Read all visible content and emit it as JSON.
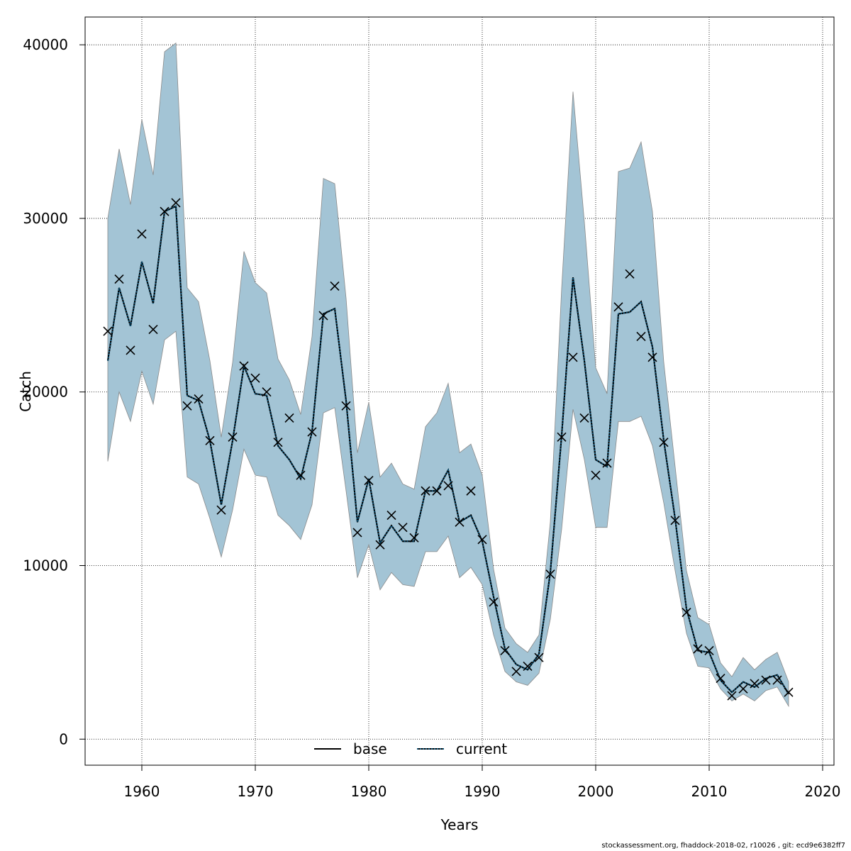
{
  "chart_data": {
    "type": "line",
    "xlabel": "Years",
    "ylabel": "Catch",
    "xlim": [
      1955,
      2021
    ],
    "ylim": [
      -1500,
      41600
    ],
    "x_ticks": [
      1960,
      1970,
      1980,
      1990,
      2000,
      2010,
      2020
    ],
    "y_ticks": [
      0,
      10000,
      20000,
      30000,
      40000
    ],
    "grid": true,
    "legend_position": "bottom-center",
    "colors": {
      "band": "#a3c4d5",
      "band_edge": "#8a8a8a",
      "base": "#000000",
      "current": "#0a4f73",
      "points": "#000000"
    },
    "footnote": "stockassessment.org, fhaddock-2018-02, r10026 , git: ecd9e6382ff7",
    "x": [
      1957,
      1958,
      1959,
      1960,
      1961,
      1962,
      1963,
      1964,
      1965,
      1966,
      1967,
      1968,
      1969,
      1970,
      1971,
      1972,
      1973,
      1974,
      1975,
      1976,
      1977,
      1978,
      1979,
      1980,
      1981,
      1982,
      1983,
      1984,
      1985,
      1986,
      1987,
      1988,
      1989,
      1990,
      1991,
      1992,
      1993,
      1994,
      1995,
      1996,
      1997,
      1998,
      1999,
      2000,
      2001,
      2002,
      2003,
      2004,
      2005,
      2006,
      2007,
      2008,
      2009,
      2010,
      2011,
      2012,
      2013,
      2014,
      2015,
      2016,
      2017
    ],
    "series": [
      {
        "name": "base",
        "style": "solid",
        "values": [
          21800,
          26000,
          23800,
          27500,
          25100,
          30400,
          30700,
          19800,
          19500,
          17200,
          13500,
          17200,
          21500,
          19900,
          19800,
          16900,
          16100,
          15000,
          17700,
          24500,
          24800,
          19500,
          12500,
          15000,
          11300,
          12300,
          11400,
          11400,
          14300,
          14300,
          15500,
          12500,
          12900,
          11400,
          8200,
          5200,
          4300,
          4000,
          4900,
          9600,
          17500,
          26600,
          21800,
          16100,
          15700,
          24500,
          24600,
          25200,
          22600,
          17200,
          12700,
          7500,
          5100,
          5000,
          3400,
          2700,
          3300,
          3000,
          3500,
          3700,
          2600
        ]
      },
      {
        "name": "current",
        "style": "dotted",
        "values": [
          21800,
          26000,
          23800,
          27500,
          25100,
          30400,
          30700,
          19800,
          19500,
          17200,
          13500,
          17200,
          21500,
          19900,
          19800,
          16900,
          16100,
          15000,
          17700,
          24500,
          24800,
          19500,
          12500,
          15000,
          11300,
          12300,
          11400,
          11400,
          14300,
          14300,
          15500,
          12500,
          12900,
          11400,
          8200,
          5200,
          4300,
          4000,
          4900,
          9600,
          17500,
          26600,
          21800,
          16100,
          15700,
          24500,
          24600,
          25200,
          22600,
          17200,
          12700,
          7500,
          5100,
          5000,
          3400,
          2700,
          3300,
          3000,
          3500,
          3700,
          2600
        ]
      }
    ],
    "observed": [
      23500,
      26500,
      22400,
      29100,
      23600,
      30400,
      30900,
      19200,
      19600,
      17200,
      13200,
      17400,
      21500,
      20800,
      20000,
      17100,
      18500,
      15200,
      17700,
      24400,
      26100,
      19200,
      11900,
      14900,
      11200,
      12900,
      12200,
      11600,
      14300,
      14300,
      14600,
      12500,
      14300,
      11500,
      7900,
      5100,
      3900,
      4200,
      4700,
      9500,
      17400,
      22000,
      18500,
      15200,
      15900,
      24900,
      26800,
      23200,
      22000,
      17100,
      12600,
      7300,
      5200,
      5100,
      3500,
      2500,
      2900,
      3200,
      3400,
      3400,
      2700
    ],
    "band_upper": [
      30000,
      34000,
      30800,
      35700,
      32500,
      39600,
      40100,
      26000,
      25200,
      21800,
      17400,
      21700,
      28100,
      26300,
      25700,
      21900,
      20700,
      18700,
      23200,
      32300,
      32000,
      25400,
      16500,
      19400,
      15100,
      15900,
      14700,
      14400,
      18000,
      18800,
      20500,
      16500,
      17000,
      15200,
      9800,
      6400,
      5500,
      5000,
      6000,
      12500,
      26000,
      37300,
      29800,
      21400,
      19900,
      32700,
      32900,
      34400,
      30400,
      21700,
      15700,
      9700,
      7000,
      6600,
      4400,
      3600,
      4700,
      4000,
      4600,
      5000,
      3300
    ],
    "band_lower": [
      16000,
      20000,
      18300,
      21200,
      19300,
      23000,
      23500,
      15100,
      14700,
      12700,
      10500,
      13200,
      16700,
      15200,
      15100,
      12900,
      12300,
      11500,
      13500,
      18800,
      19100,
      14300,
      9300,
      11200,
      8600,
      9600,
      8900,
      8800,
      10800,
      10800,
      11700,
      9300,
      9900,
      8900,
      6000,
      3900,
      3300,
      3100,
      3800,
      6900,
      12100,
      19000,
      16100,
      12200,
      12200,
      18300,
      18300,
      18600,
      16900,
      13600,
      9700,
      6100,
      4200,
      4100,
      2900,
      2200,
      2600,
      2200,
      2800,
      3000,
      1900
    ]
  }
}
